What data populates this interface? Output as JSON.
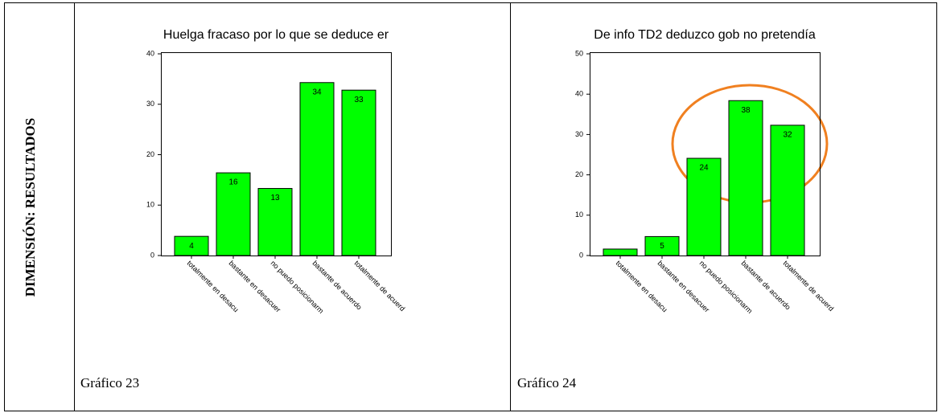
{
  "section_label": "DIMENSIÓN: RESULTADOS",
  "chart_data": [
    {
      "type": "bar",
      "title": "Huelga fracaso por lo que se deduce er",
      "caption": "Gráfico 23",
      "categories": [
        "totalmente en desacu",
        "bastante en desacuer",
        "no puedo posicionarm",
        "bastante de acuerdo",
        "totalmente de acuerd"
      ],
      "values": [
        3.8,
        16.4,
        13.3,
        34.3,
        32.8
      ],
      "value_labels": [
        "4",
        "16",
        "13",
        "34",
        "33"
      ],
      "color": "#00ff00",
      "ylim": [
        0,
        40
      ],
      "yticks": [
        0,
        10,
        20,
        30,
        40
      ]
    },
    {
      "type": "bar",
      "title": "De info TD2 deduzco gob no pretendía",
      "caption": "Gráfico 24",
      "categories": [
        "totalmente en desacu",
        "bastante en desacuer",
        "no puedo posicionarm",
        "bastante de acuerdo",
        "totalmente de acuerd"
      ],
      "values": [
        1.6,
        4.7,
        24.1,
        38.4,
        32.3
      ],
      "value_labels": [
        null,
        "5",
        "24",
        "38",
        "32"
      ],
      "color": "#00ff00",
      "ylim": [
        0,
        50
      ],
      "yticks": [
        0,
        10,
        20,
        30,
        40,
        50
      ]
    }
  ]
}
